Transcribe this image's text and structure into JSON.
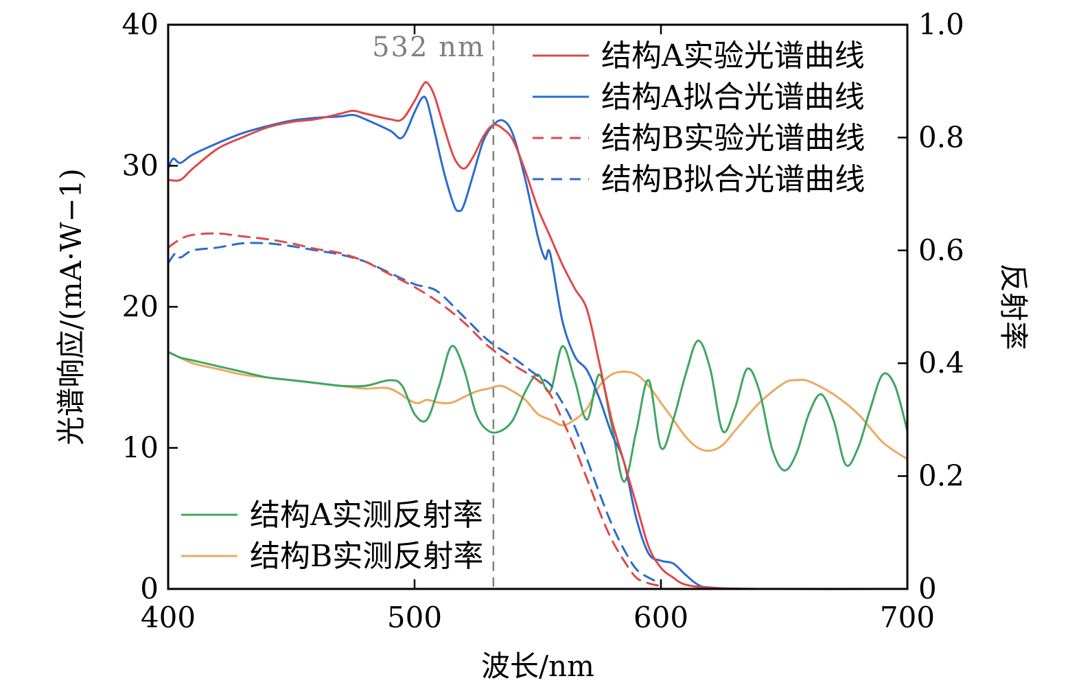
{
  "chart_data": {
    "type": "line",
    "title": "",
    "xlabel": "波长/nm",
    "ylabel_left": "光谱响应/(mA·W−1)",
    "ylabel_right": "反射率",
    "xlim": [
      400,
      700
    ],
    "ylim_left": [
      0,
      40
    ],
    "ylim_right": [
      0,
      1.0
    ],
    "x_ticks": [
      400,
      500,
      600,
      700
    ],
    "y_left_ticks": [
      0,
      10,
      20,
      30,
      40
    ],
    "y_right_ticks": [
      "0",
      "0.2",
      "0.4",
      "0.6",
      "0.8",
      "1.0"
    ],
    "grid": false,
    "legend_placement": [
      "top-right",
      "bottom-left"
    ],
    "annotations": [
      {
        "text": "532 nm",
        "x": 532,
        "style": "dashed-vertical-line"
      }
    ],
    "series": [
      {
        "name": "结构A实验光谱曲线",
        "axis": "left",
        "color": "#e04848",
        "dash": "solid",
        "x": [
          400,
          405,
          410,
          420,
          430,
          440,
          450,
          460,
          470,
          475,
          480,
          490,
          495,
          500,
          503,
          505,
          508,
          512,
          516,
          520,
          524,
          528,
          532,
          536,
          540,
          545,
          550,
          555,
          560,
          565,
          570,
          575,
          580,
          585,
          590,
          595,
          600,
          605,
          610,
          620,
          640,
          700
        ],
        "y": [
          29,
          29,
          29.8,
          31.2,
          32,
          32.7,
          33.1,
          33.3,
          33.7,
          33.9,
          33.7,
          33.3,
          33.3,
          34.6,
          35.6,
          35.9,
          35,
          32.7,
          30.6,
          29.8,
          30.7,
          32.1,
          32.9,
          32.6,
          31.8,
          29.6,
          27,
          25,
          23,
          21.3,
          19.8,
          16,
          12,
          9,
          6,
          3,
          1.5,
          0.8,
          0.3,
          0.08,
          0,
          0
        ]
      },
      {
        "name": "结构A拟合光谱曲线",
        "axis": "left",
        "color": "#2a6bd0",
        "dash": "solid",
        "x": [
          400,
          402,
          405,
          410,
          420,
          430,
          440,
          450,
          460,
          470,
          475,
          480,
          490,
          495,
          500,
          503,
          505,
          508,
          512,
          516,
          518,
          520,
          524,
          528,
          532,
          536,
          540,
          545,
          550,
          553,
          555,
          560,
          565,
          570,
          575,
          580,
          585,
          590,
          595,
          600,
          605,
          610,
          615,
          620,
          640,
          700
        ],
        "y": [
          29.8,
          30.5,
          30.2,
          30.8,
          31.6,
          32.3,
          32.8,
          33.2,
          33.4,
          33.5,
          33.6,
          33.3,
          32.5,
          32,
          33.8,
          34.8,
          34.6,
          32.5,
          29.5,
          27.2,
          26.8,
          27.2,
          29.5,
          31.8,
          32.9,
          33.2,
          32.2,
          29,
          25,
          23.4,
          23.8,
          19,
          16.5,
          15.5,
          13.5,
          11,
          9,
          5,
          2.5,
          2,
          1.8,
          1,
          0.3,
          0.1,
          0,
          0
        ]
      },
      {
        "name": "结构B实验光谱曲线",
        "axis": "left",
        "color": "#e04848",
        "dash": "dashed",
        "x": [
          400,
          405,
          410,
          420,
          430,
          440,
          450,
          460,
          470,
          480,
          490,
          500,
          510,
          520,
          530,
          540,
          550,
          555,
          560,
          565,
          570,
          575,
          580,
          585,
          590,
          595,
          600
        ],
        "y": [
          24.2,
          24.8,
          25.1,
          25.2,
          25,
          24.8,
          24.5,
          24.1,
          23.8,
          23.2,
          22.3,
          21.4,
          20.3,
          18.9,
          17.2,
          15.9,
          14.8,
          13.8,
          12,
          10,
          7.8,
          5.5,
          3.5,
          2,
          0.8,
          0.4,
          0.2
        ]
      },
      {
        "name": "结构B拟合光谱曲线",
        "axis": "left",
        "color": "#2a6bd0",
        "dash": "dashed",
        "x": [
          400,
          403,
          405,
          410,
          420,
          430,
          440,
          450,
          460,
          470,
          480,
          490,
          500,
          505,
          510,
          520,
          530,
          540,
          550,
          555,
          560,
          565,
          570,
          575,
          580,
          585,
          590,
          595,
          600
        ],
        "y": [
          23.1,
          23.8,
          23.5,
          24,
          24.2,
          24.5,
          24.5,
          24.3,
          24,
          23.7,
          23.2,
          22.4,
          21.6,
          21.4,
          21,
          19.3,
          17.6,
          16.4,
          15.1,
          14.5,
          13.2,
          11.5,
          9.2,
          6.8,
          4.6,
          2.8,
          1.4,
          0.8,
          0.4
        ]
      },
      {
        "name": "结构A实测反射率",
        "axis": "right",
        "color": "#3ea661",
        "dash": "solid",
        "x": [
          400,
          405,
          410,
          420,
          430,
          440,
          450,
          460,
          470,
          480,
          490,
          495,
          500,
          505,
          510,
          515,
          520,
          525,
          530,
          535,
          540,
          545,
          550,
          555,
          560,
          565,
          570,
          575,
          580,
          585,
          590,
          595,
          600,
          605,
          610,
          615,
          620,
          625,
          630,
          635,
          640,
          645,
          650,
          655,
          660,
          665,
          670,
          675,
          680,
          685,
          690,
          695,
          700
        ],
        "y": [
          0.42,
          0.41,
          0.405,
          0.395,
          0.385,
          0.375,
          0.37,
          0.365,
          0.36,
          0.36,
          0.37,
          0.36,
          0.31,
          0.3,
          0.36,
          0.43,
          0.39,
          0.31,
          0.28,
          0.28,
          0.3,
          0.35,
          0.38,
          0.35,
          0.43,
          0.37,
          0.3,
          0.38,
          0.29,
          0.19,
          0.28,
          0.37,
          0.25,
          0.3,
          0.38,
          0.44,
          0.39,
          0.28,
          0.32,
          0.39,
          0.35,
          0.25,
          0.21,
          0.24,
          0.31,
          0.345,
          0.3,
          0.22,
          0.25,
          0.32,
          0.38,
          0.36,
          0.28
        ]
      },
      {
        "name": "结构B实测反射率",
        "axis": "right",
        "color": "#eda85f",
        "dash": "solid",
        "x": [
          400,
          410,
          420,
          430,
          440,
          450,
          460,
          470,
          480,
          490,
          500,
          505,
          510,
          515,
          520,
          525,
          530,
          535,
          540,
          545,
          550,
          555,
          560,
          565,
          570,
          575,
          580,
          585,
          590,
          595,
          600,
          605,
          610,
          615,
          620,
          625,
          630,
          640,
          650,
          655,
          660,
          670,
          680,
          690,
          700
        ],
        "y": [
          0.42,
          0.4,
          0.39,
          0.38,
          0.375,
          0.37,
          0.365,
          0.36,
          0.355,
          0.355,
          0.33,
          0.335,
          0.33,
          0.33,
          0.34,
          0.35,
          0.355,
          0.36,
          0.35,
          0.335,
          0.31,
          0.3,
          0.29,
          0.3,
          0.32,
          0.36,
          0.38,
          0.385,
          0.38,
          0.36,
          0.33,
          0.3,
          0.27,
          0.25,
          0.245,
          0.255,
          0.28,
          0.33,
          0.365,
          0.37,
          0.368,
          0.345,
          0.31,
          0.26,
          0.23
        ]
      }
    ]
  }
}
